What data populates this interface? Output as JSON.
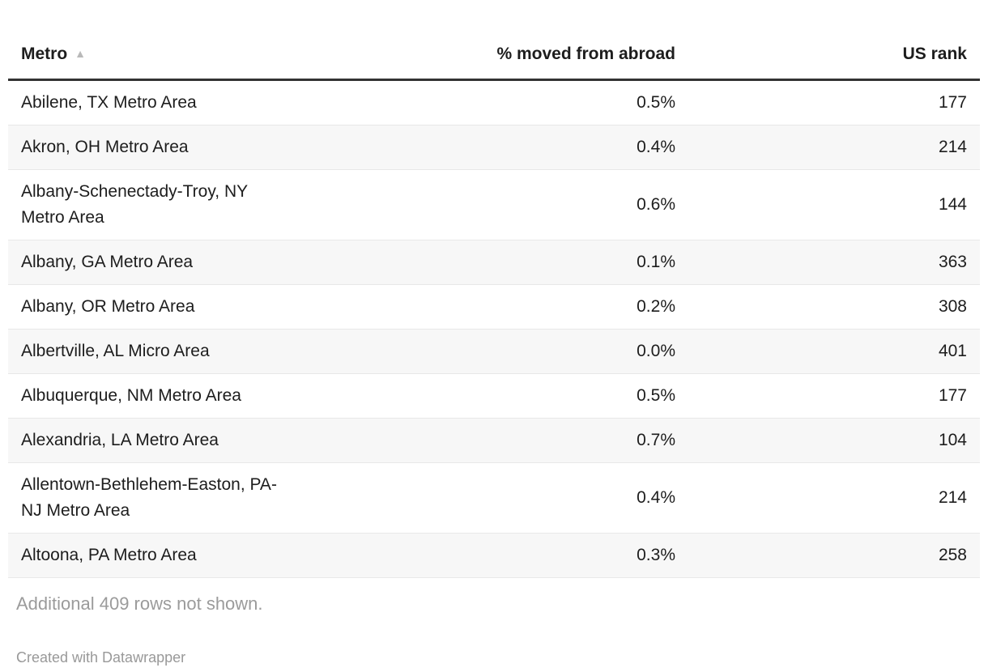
{
  "chart_data": {
    "type": "table",
    "columns": [
      {
        "label": "Metro",
        "align": "left",
        "sorted": "ascending"
      },
      {
        "label": "% moved from abroad",
        "align": "right",
        "sorted": "none"
      },
      {
        "label": "US rank",
        "align": "right",
        "sorted": "none"
      }
    ],
    "rows": [
      {
        "metro": "Abilene, TX Metro Area",
        "pct": "0.5%",
        "rank": "177"
      },
      {
        "metro": "Akron, OH Metro Area",
        "pct": "0.4%",
        "rank": "214"
      },
      {
        "metro": "Albany-Schenectady-Troy, NY Metro Area",
        "pct": "0.6%",
        "rank": "144"
      },
      {
        "metro": "Albany, GA Metro Area",
        "pct": "0.1%",
        "rank": "363"
      },
      {
        "metro": "Albany, OR Metro Area",
        "pct": "0.2%",
        "rank": "308"
      },
      {
        "metro": "Albertville, AL Micro Area",
        "pct": "0.0%",
        "rank": "401"
      },
      {
        "metro": "Albuquerque, NM Metro Area",
        "pct": "0.5%",
        "rank": "177"
      },
      {
        "metro": "Alexandria, LA Metro Area",
        "pct": "0.7%",
        "rank": "104"
      },
      {
        "metro": "Allentown-Bethlehem-Easton, PA-NJ Metro Area",
        "pct": "0.4%",
        "rank": "214"
      },
      {
        "metro": "Altoona, PA Metro Area",
        "pct": "0.3%",
        "rank": "258"
      }
    ],
    "note": "Additional 409 rows not shown.",
    "attribution": "Created with Datawrapper"
  },
  "icons": {
    "sort_ascending": "▲"
  },
  "colors": {
    "text": "#1d1d1d",
    "header_rule": "#333333",
    "row_border": "#e8e8e8",
    "stripe": "#f7f7f7",
    "sort_icon": "#b9b9b9",
    "note_text": "#9b9b9b",
    "attribution_text": "#999999",
    "background": "#ffffff"
  }
}
